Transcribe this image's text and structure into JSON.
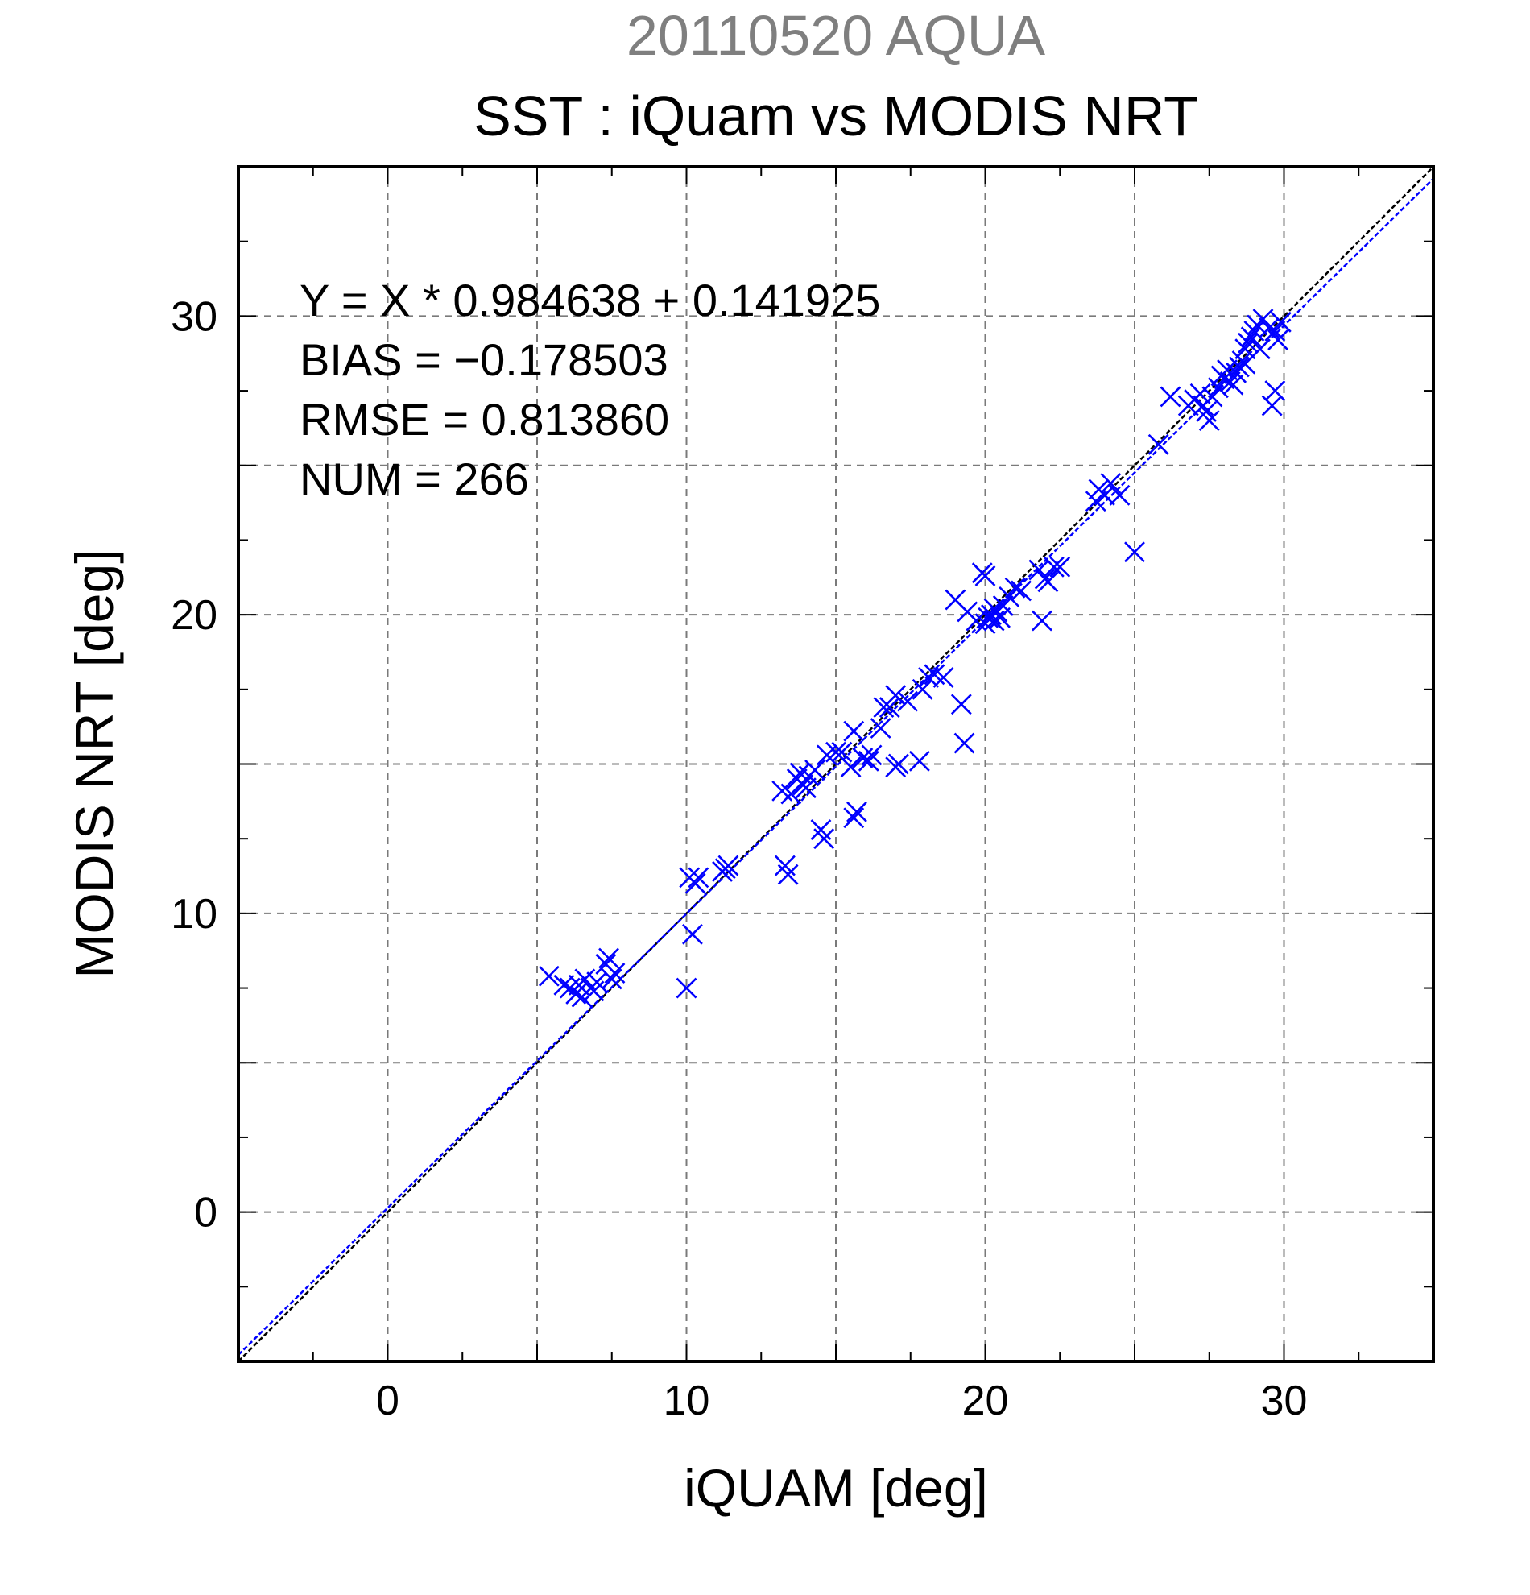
{
  "chart_data": {
    "type": "scatter",
    "title_top": "20110520 AQUA",
    "title": "SST : iQuam vs MODIS NRT",
    "xlabel": "iQUAM [deg]",
    "ylabel": "MODIS NRT [deg]",
    "xlim": [
      -5,
      35
    ],
    "ylim": [
      -5,
      35
    ],
    "xticks": [
      0,
      10,
      20,
      30
    ],
    "yticks": [
      0,
      10,
      20,
      30
    ],
    "grid": true,
    "marker": "x",
    "marker_color": "#0000ff",
    "stats": [
      "Y = X * 0.984638 + 0.141925",
      "BIAS = −0.178503",
      "RMSE = 0.813860",
      "NUM = 266"
    ],
    "lines": [
      {
        "kind": "identity",
        "slope": 1,
        "intercept": 0,
        "color": "#000000"
      },
      {
        "kind": "regression",
        "slope": 0.984638,
        "intercept": 0.141925,
        "color": "#0000ff"
      }
    ],
    "points": [
      [
        5.4,
        7.9
      ],
      [
        5.9,
        7.6
      ],
      [
        6.1,
        7.5
      ],
      [
        6.3,
        7.3
      ],
      [
        6.4,
        7.6
      ],
      [
        6.6,
        7.8
      ],
      [
        6.8,
        7.5
      ],
      [
        7.0,
        7.7
      ],
      [
        7.3,
        8.3
      ],
      [
        7.4,
        8.5
      ],
      [
        7.6,
        8.0
      ],
      [
        7.5,
        7.8
      ],
      [
        6.5,
        7.2
      ],
      [
        6.9,
        7.4
      ],
      [
        10.0,
        7.5
      ],
      [
        10.2,
        9.3
      ],
      [
        10.1,
        11.2
      ],
      [
        10.3,
        11.0
      ],
      [
        10.4,
        11.2
      ],
      [
        11.2,
        11.4
      ],
      [
        11.4,
        11.6
      ],
      [
        11.3,
        11.5
      ],
      [
        13.4,
        11.3
      ],
      [
        13.3,
        11.6
      ],
      [
        13.2,
        14.1
      ],
      [
        13.5,
        14.0
      ],
      [
        13.7,
        14.5
      ],
      [
        13.9,
        14.3
      ],
      [
        14.1,
        14.6
      ],
      [
        14.3,
        14.8
      ],
      [
        14.0,
        14.2
      ],
      [
        13.8,
        14.7
      ],
      [
        14.5,
        12.8
      ],
      [
        14.6,
        12.5
      ],
      [
        14.7,
        15.3
      ],
      [
        15.0,
        15.4
      ],
      [
        15.2,
        15.4
      ],
      [
        15.6,
        16.1
      ],
      [
        15.7,
        13.4
      ],
      [
        15.6,
        13.2
      ],
      [
        15.5,
        14.9
      ],
      [
        15.9,
        15.2
      ],
      [
        16.1,
        15.1
      ],
      [
        16.2,
        15.3
      ],
      [
        16.5,
        16.2
      ],
      [
        16.6,
        16.9
      ],
      [
        16.8,
        16.9
      ],
      [
        17.0,
        14.9
      ],
      [
        17.1,
        15.0
      ],
      [
        17.0,
        17.3
      ],
      [
        17.4,
        17.1
      ],
      [
        17.8,
        15.1
      ],
      [
        17.9,
        17.5
      ],
      [
        18.1,
        17.9
      ],
      [
        18.3,
        18.0
      ],
      [
        18.6,
        17.9
      ],
      [
        19.2,
        17.0
      ],
      [
        19.3,
        15.7
      ],
      [
        19.0,
        20.5
      ],
      [
        19.4,
        20.1
      ],
      [
        19.7,
        19.8
      ],
      [
        19.9,
        21.4
      ],
      [
        20.0,
        21.3
      ],
      [
        20.1,
        19.9
      ],
      [
        20.2,
        20.0
      ],
      [
        20.3,
        19.8
      ],
      [
        20.4,
        20.1
      ],
      [
        20.5,
        19.9
      ],
      [
        20.6,
        20.3
      ],
      [
        20.8,
        20.6
      ],
      [
        21.0,
        20.9
      ],
      [
        21.2,
        20.8
      ],
      [
        20.0,
        19.7
      ],
      [
        20.3,
        20.2
      ],
      [
        21.9,
        19.8
      ],
      [
        22.0,
        21.2
      ],
      [
        22.1,
        21.1
      ],
      [
        22.3,
        21.6
      ],
      [
        22.5,
        21.6
      ],
      [
        21.8,
        21.5
      ],
      [
        23.7,
        23.8
      ],
      [
        23.8,
        24.2
      ],
      [
        24.0,
        24.0
      ],
      [
        24.2,
        24.4
      ],
      [
        24.5,
        24.0
      ],
      [
        25.0,
        22.1
      ],
      [
        25.8,
        25.7
      ],
      [
        26.2,
        27.3
      ],
      [
        26.8,
        27.0
      ],
      [
        27.0,
        27.2
      ],
      [
        27.2,
        27.4
      ],
      [
        27.3,
        27.0
      ],
      [
        27.5,
        26.5
      ],
      [
        27.4,
        26.8
      ],
      [
        27.6,
        27.3
      ],
      [
        27.8,
        27.6
      ],
      [
        28.0,
        27.9
      ],
      [
        28.1,
        28.2
      ],
      [
        28.2,
        27.8
      ],
      [
        28.4,
        28.1
      ],
      [
        28.5,
        28.3
      ],
      [
        28.6,
        28.5
      ],
      [
        28.7,
        28.9
      ],
      [
        28.8,
        29.1
      ],
      [
        28.9,
        29.3
      ],
      [
        29.0,
        29.5
      ],
      [
        29.1,
        29.7
      ],
      [
        29.2,
        28.9
      ],
      [
        29.3,
        29.9
      ],
      [
        29.5,
        29.6
      ],
      [
        29.6,
        27.0
      ],
      [
        29.7,
        27.5
      ],
      [
        29.8,
        29.2
      ],
      [
        29.9,
        29.8
      ],
      [
        29.7,
        29.5
      ],
      [
        28.3,
        27.7
      ],
      [
        27.9,
        28.0
      ],
      [
        28.7,
        28.4
      ]
    ]
  }
}
